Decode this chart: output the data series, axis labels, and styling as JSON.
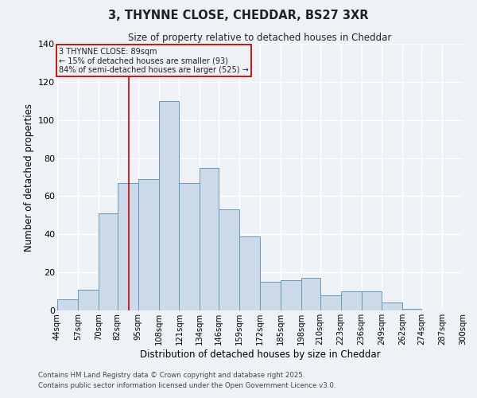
{
  "title": "3, THYNNE CLOSE, CHEDDAR, BS27 3XR",
  "subtitle": "Size of property relative to detached houses in Cheddar",
  "xlabel": "Distribution of detached houses by size in Cheddar",
  "ylabel": "Number of detached properties",
  "footer_line1": "Contains HM Land Registry data © Crown copyright and database right 2025.",
  "footer_line2": "Contains public sector information licensed under the Open Government Licence v3.0.",
  "bin_labels": [
    "44sqm",
    "57sqm",
    "70sqm",
    "82sqm",
    "95sqm",
    "108sqm",
    "121sqm",
    "134sqm",
    "146sqm",
    "159sqm",
    "172sqm",
    "185sqm",
    "198sqm",
    "210sqm",
    "223sqm",
    "236sqm",
    "249sqm",
    "262sqm",
    "274sqm",
    "287sqm",
    "300sqm"
  ],
  "bar_values": [
    6,
    11,
    51,
    67,
    69,
    110,
    67,
    75,
    53,
    39,
    15,
    16,
    17,
    8,
    10,
    10,
    4,
    1,
    0,
    0
  ],
  "bar_color": "#ccd9e8",
  "bar_edge_color": "#6699bb",
  "ylim": [
    0,
    140
  ],
  "yticks": [
    0,
    20,
    40,
    60,
    80,
    100,
    120,
    140
  ],
  "property_line_x": 89,
  "property_line_color": "#cc0000",
  "annotation_title": "3 THYNNE CLOSE: 89sqm",
  "annotation_line1": "← 15% of detached houses are smaller (93)",
  "annotation_line2": "84% of semi-detached houses are larger (525) →",
  "annotation_box_color": "#cc0000",
  "bin_edges": [
    44,
    57,
    70,
    82,
    95,
    108,
    121,
    134,
    146,
    159,
    172,
    185,
    198,
    210,
    223,
    236,
    249,
    262,
    274,
    287,
    300
  ],
  "bg_color": "#eef2f7",
  "grid_color": "#ffffff",
  "text_color": "#222222"
}
